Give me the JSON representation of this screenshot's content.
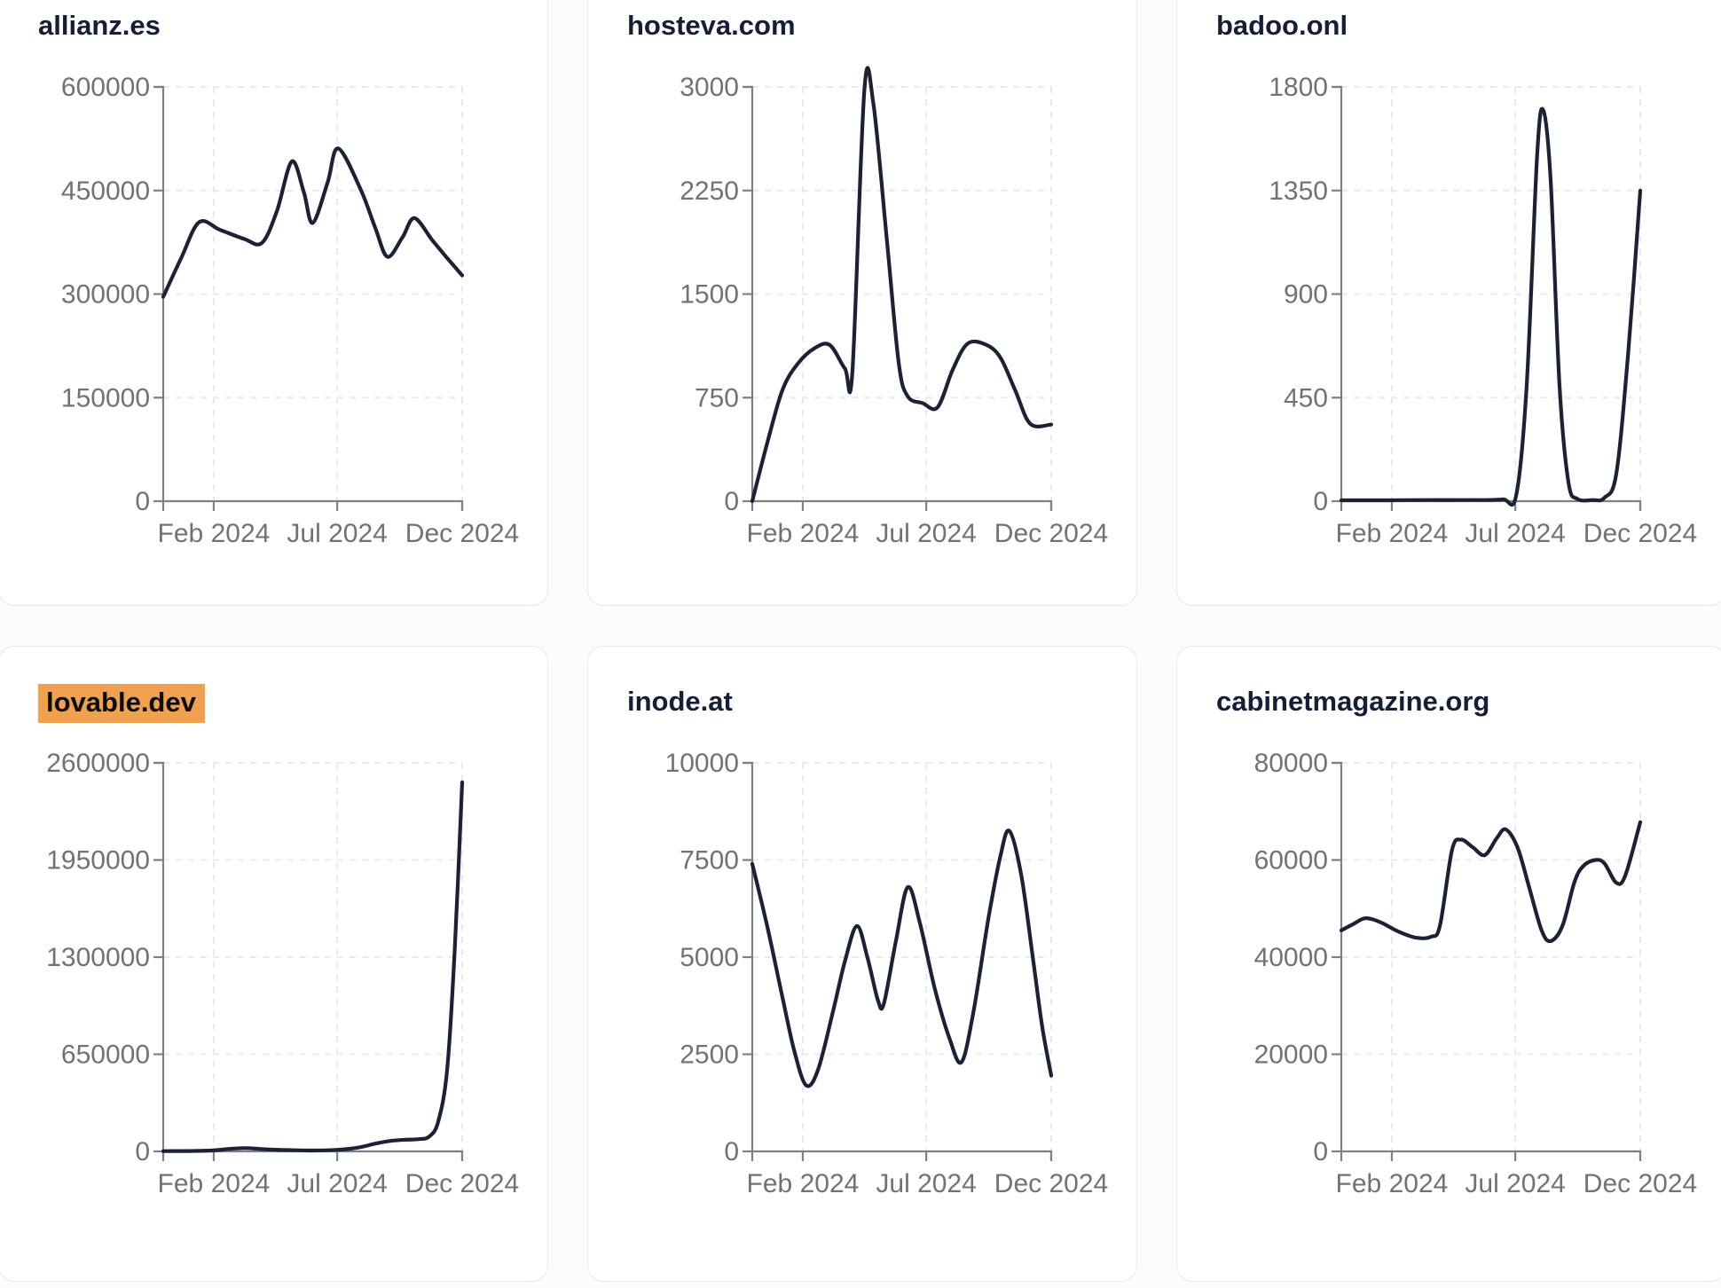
{
  "colors": {
    "line": "#1b2236",
    "title": "#141e36",
    "title_highlight_bg": "#f0a150",
    "tick_label": "#6f7277",
    "axis": "#7d8085",
    "grid": "#e9e9eb",
    "card_border": "#e3e9f3",
    "card_bg": "#ffffff",
    "page_bg": "#fcfcfd"
  },
  "x_axis_ticks": [
    "Feb 2024",
    "Jul 2024",
    "Dec 2024"
  ],
  "chart_data": [
    {
      "type": "line",
      "title": "allianz.es",
      "highlighted": false,
      "ylim": [
        0,
        600000
      ],
      "y_ticks": [
        0,
        150000,
        300000,
        450000,
        600000
      ],
      "x_ticks": [
        {
          "label": "Feb 2024",
          "t": 0.169
        },
        {
          "label": "Jul 2024",
          "t": 0.582
        },
        {
          "label": "Dec 2024",
          "t": 1.0
        }
      ],
      "points": [
        [
          0,
          296000
        ],
        [
          0.06,
          352000
        ],
        [
          0.12,
          404000
        ],
        [
          0.19,
          393000
        ],
        [
          0.27,
          380000
        ],
        [
          0.33,
          374000
        ],
        [
          0.38,
          420000
        ],
        [
          0.43,
          492000
        ],
        [
          0.47,
          448000
        ],
        [
          0.5,
          403000
        ],
        [
          0.55,
          462000
        ],
        [
          0.585,
          511000
        ],
        [
          0.66,
          452000
        ],
        [
          0.71,
          395000
        ],
        [
          0.75,
          354000
        ],
        [
          0.8,
          382000
        ],
        [
          0.84,
          410000
        ],
        [
          0.9,
          378000
        ],
        [
          0.95,
          352000
        ],
        [
          1,
          327000
        ]
      ]
    },
    {
      "type": "line",
      "title": "hosteva.com",
      "highlighted": false,
      "ylim": [
        0,
        3000
      ],
      "y_ticks": [
        0,
        750,
        1500,
        2250,
        3000
      ],
      "x_ticks": [
        {
          "label": "Feb 2024",
          "t": 0.169
        },
        {
          "label": "Jul 2024",
          "t": 0.582
        },
        {
          "label": "Dec 2024",
          "t": 1.0
        }
      ],
      "points": [
        [
          0,
          0
        ],
        [
          0.05,
          420
        ],
        [
          0.1,
          800
        ],
        [
          0.15,
          990
        ],
        [
          0.21,
          1110
        ],
        [
          0.26,
          1130
        ],
        [
          0.31,
          960
        ],
        [
          0.335,
          940
        ],
        [
          0.375,
          2980
        ],
        [
          0.405,
          2880
        ],
        [
          0.45,
          1900
        ],
        [
          0.49,
          1000
        ],
        [
          0.52,
          760
        ],
        [
          0.57,
          710
        ],
        [
          0.62,
          680
        ],
        [
          0.67,
          950
        ],
        [
          0.72,
          1140
        ],
        [
          0.78,
          1135
        ],
        [
          0.83,
          1040
        ],
        [
          0.88,
          800
        ],
        [
          0.93,
          560
        ],
        [
          1,
          555
        ]
      ]
    },
    {
      "type": "line",
      "title": "badoo.onl",
      "highlighted": false,
      "ylim": [
        0,
        1800
      ],
      "y_ticks": [
        0,
        450,
        900,
        1350,
        1800
      ],
      "x_ticks": [
        {
          "label": "Feb 2024",
          "t": 0.169
        },
        {
          "label": "Jul 2024",
          "t": 0.582
        },
        {
          "label": "Dec 2024",
          "t": 1.0
        }
      ],
      "points": [
        [
          0,
          4
        ],
        [
          0.15,
          4
        ],
        [
          0.3,
          5
        ],
        [
          0.45,
          5
        ],
        [
          0.54,
          8
        ],
        [
          0.585,
          25
        ],
        [
          0.62,
          500
        ],
        [
          0.655,
          1500
        ],
        [
          0.675,
          1700
        ],
        [
          0.7,
          1400
        ],
        [
          0.73,
          500
        ],
        [
          0.76,
          80
        ],
        [
          0.79,
          10
        ],
        [
          0.84,
          5
        ],
        [
          0.88,
          15
        ],
        [
          0.92,
          120
        ],
        [
          0.96,
          650
        ],
        [
          1,
          1350
        ]
      ]
    },
    {
      "type": "line",
      "title": "lovable.dev",
      "highlighted": true,
      "ylim": [
        0,
        2600000
      ],
      "y_ticks": [
        0,
        650000,
        1300000,
        1950000,
        2600000
      ],
      "x_ticks": [
        {
          "label": "Feb 2024",
          "t": 0.169
        },
        {
          "label": "Jul 2024",
          "t": 0.582
        },
        {
          "label": "Dec 2024",
          "t": 1.0
        }
      ],
      "points": [
        [
          0,
          2000
        ],
        [
          0.08,
          2500
        ],
        [
          0.16,
          6000
        ],
        [
          0.23,
          18000
        ],
        [
          0.28,
          22000
        ],
        [
          0.34,
          14000
        ],
        [
          0.42,
          9000
        ],
        [
          0.5,
          6000
        ],
        [
          0.58,
          10000
        ],
        [
          0.65,
          25000
        ],
        [
          0.71,
          52000
        ],
        [
          0.76,
          70000
        ],
        [
          0.81,
          78000
        ],
        [
          0.855,
          82000
        ],
        [
          0.89,
          100000
        ],
        [
          0.92,
          200000
        ],
        [
          0.95,
          550000
        ],
        [
          0.975,
          1350000
        ],
        [
          1,
          2470000
        ]
      ]
    },
    {
      "type": "line",
      "title": "inode.at",
      "highlighted": false,
      "ylim": [
        0,
        10000
      ],
      "y_ticks": [
        0,
        2500,
        5000,
        7500,
        10000
      ],
      "x_ticks": [
        {
          "label": "Feb 2024",
          "t": 0.169
        },
        {
          "label": "Jul 2024",
          "t": 0.582
        },
        {
          "label": "Dec 2024",
          "t": 1.0
        }
      ],
      "points": [
        [
          0,
          7400
        ],
        [
          0.05,
          5800
        ],
        [
          0.1,
          4000
        ],
        [
          0.14,
          2600
        ],
        [
          0.18,
          1700
        ],
        [
          0.22,
          2100
        ],
        [
          0.27,
          3600
        ],
        [
          0.31,
          4900
        ],
        [
          0.35,
          5800
        ],
        [
          0.385,
          5000
        ],
        [
          0.42,
          3900
        ],
        [
          0.44,
          3800
        ],
        [
          0.48,
          5400
        ],
        [
          0.52,
          6800
        ],
        [
          0.56,
          5900
        ],
        [
          0.61,
          4200
        ],
        [
          0.66,
          2900
        ],
        [
          0.7,
          2300
        ],
        [
          0.74,
          3600
        ],
        [
          0.79,
          6000
        ],
        [
          0.83,
          7600
        ],
        [
          0.86,
          8250
        ],
        [
          0.9,
          7100
        ],
        [
          0.94,
          4900
        ],
        [
          0.97,
          3200
        ],
        [
          1,
          1950
        ]
      ]
    },
    {
      "type": "line",
      "title": "cabinetmagazine.org",
      "highlighted": false,
      "ylim": [
        0,
        80000
      ],
      "y_ticks": [
        0,
        20000,
        40000,
        60000,
        80000
      ],
      "x_ticks": [
        {
          "label": "Feb 2024",
          "t": 0.169
        },
        {
          "label": "Jul 2024",
          "t": 0.582
        },
        {
          "label": "Dec 2024",
          "t": 1.0
        }
      ],
      "points": [
        [
          0,
          45500
        ],
        [
          0.04,
          46800
        ],
        [
          0.08,
          48000
        ],
        [
          0.13,
          47200
        ],
        [
          0.19,
          45300
        ],
        [
          0.25,
          44000
        ],
        [
          0.3,
          44200
        ],
        [
          0.33,
          46500
        ],
        [
          0.37,
          62000
        ],
        [
          0.4,
          64200
        ],
        [
          0.44,
          62600
        ],
        [
          0.48,
          61000
        ],
        [
          0.52,
          64500
        ],
        [
          0.55,
          66300
        ],
        [
          0.59,
          62500
        ],
        [
          0.63,
          54000
        ],
        [
          0.67,
          45500
        ],
        [
          0.7,
          43300
        ],
        [
          0.74,
          46500
        ],
        [
          0.78,
          55500
        ],
        [
          0.81,
          58800
        ],
        [
          0.85,
          60000
        ],
        [
          0.88,
          59300
        ],
        [
          0.92,
          55300
        ],
        [
          0.95,
          56800
        ],
        [
          1,
          67800
        ]
      ]
    }
  ]
}
